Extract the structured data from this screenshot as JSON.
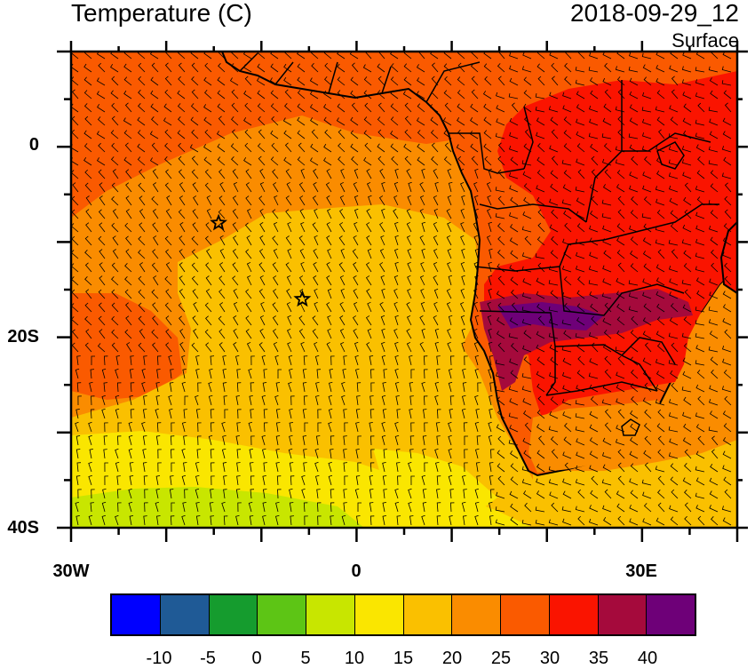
{
  "header": {
    "title": "Temperature (C)",
    "datetime": "2018-09-29_12",
    "level": "Surface"
  },
  "axes": {
    "y_ticks": [
      {
        "label": "0",
        "lat": 0
      },
      {
        "label": "20S",
        "lat": -20
      },
      {
        "label": "40S",
        "lat": -40
      }
    ],
    "x_ticks": [
      {
        "label": "30W",
        "lon": -30
      },
      {
        "label": "0",
        "lon": 0
      },
      {
        "label": "30E",
        "lon": 30
      }
    ],
    "lon_range": [
      -30,
      40
    ],
    "lat_range": [
      -40,
      10
    ]
  },
  "markers": [
    {
      "name": "star-marker-1",
      "lon": -14.5,
      "lat": -8
    },
    {
      "name": "star-marker-2",
      "lon": -5.7,
      "lat": -16
    }
  ],
  "colorbar": {
    "colors": [
      "#0000ff",
      "#1f5a96",
      "#159c2e",
      "#5dc515",
      "#c8e600",
      "#fae600",
      "#fac000",
      "#fa8c00",
      "#fa5a00",
      "#fa1400",
      "#a50a3c",
      "#6e0078"
    ],
    "labels": [
      "-10",
      "-5",
      "0",
      "5",
      "10",
      "15",
      "20",
      "25",
      "30",
      "35",
      "40"
    ]
  },
  "palette": {
    "t15": "#fae600",
    "t20": "#fac000",
    "t25": "#fa8c00",
    "t30": "#fa5a00",
    "t35": "#fa1400",
    "t40": "#a50a3c",
    "t45": "#6e0078",
    "t10": "#c8e600"
  }
}
